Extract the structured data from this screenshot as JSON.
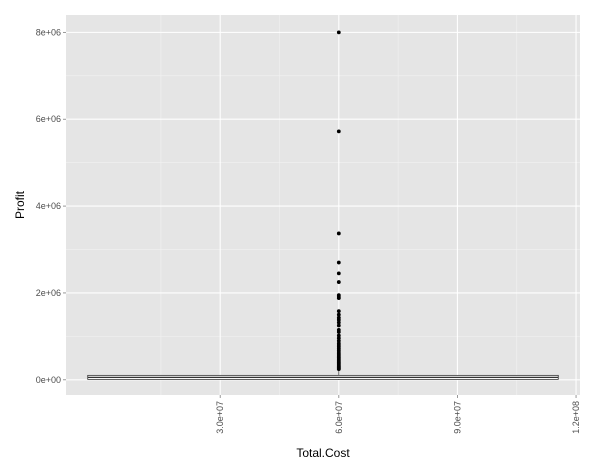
{
  "chart_data": {
    "type": "boxplot",
    "xlabel": "Total.Cost",
    "ylabel": "Profit",
    "xlim": [
      -9000000,
      121000000
    ],
    "ylim": [
      -350000,
      8400000
    ],
    "x_ticks": [
      {
        "value": 30000000,
        "label": "3.0e+07"
      },
      {
        "value": 60000000,
        "label": "6.0e+07"
      },
      {
        "value": 90000000,
        "label": "9.0e+07"
      },
      {
        "value": 120000000,
        "label": "1.2e+08"
      }
    ],
    "y_ticks": [
      {
        "value": 0,
        "label": "0e+00"
      },
      {
        "value": 2000000,
        "label": "2e+06"
      },
      {
        "value": 4000000,
        "label": "4e+06"
      },
      {
        "value": 6000000,
        "label": "6e+06"
      },
      {
        "value": 8000000,
        "label": "8e+06"
      }
    ],
    "grid": true,
    "box": {
      "x_min": -3500000,
      "x_max": 115500000,
      "median_x": 60000000,
      "q1": 10000,
      "median": 40000,
      "q3": 100000,
      "whisker_low": 0,
      "whisker_high": 230000
    },
    "outliers_x": 60000000,
    "outliers": [
      8000000,
      5720000,
      3370000,
      2700000,
      2450000,
      2250000,
      1950000,
      1910000,
      1880000,
      1580000,
      1500000,
      1430000,
      1380000,
      1320000,
      1250000,
      1150000,
      1100000,
      1020000,
      960000,
      900000,
      840000,
      800000,
      760000,
      720000,
      680000,
      640000,
      600000,
      570000,
      540000,
      510000,
      480000,
      450000,
      420000,
      395000,
      370000,
      345000,
      320000,
      300000,
      280000,
      260000,
      245000
    ]
  }
}
